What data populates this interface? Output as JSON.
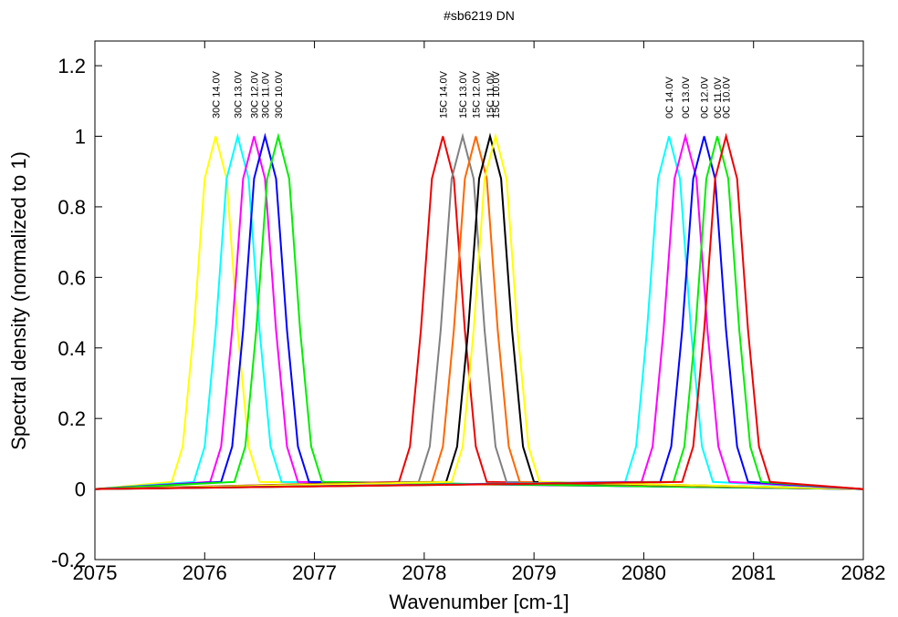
{
  "chart_data": {
    "type": "line",
    "title": "#sb6219 DN",
    "x_label": "Wavenumber [cm-1]",
    "y_label": "Spectral density (normalized to 1)",
    "xlim": [
      2075,
      2082
    ],
    "xticks": [
      2075,
      2076,
      2077,
      2078,
      2079,
      2080,
      2081,
      2082
    ],
    "ylim": [
      -0.2,
      1.27
    ],
    "yticks": [
      -0.2,
      0,
      0.2,
      0.4,
      0.6,
      0.8,
      1,
      1.2
    ],
    "grid": false,
    "series": [
      {
        "name": "30C 14.0V",
        "color": "#ffff00",
        "x": [
          2075,
          2075.7,
          2075.8,
          2075.9,
          2076.0,
          2076.1,
          2076.2,
          2076.3,
          2076.4,
          2076.5,
          2082
        ],
        "values": [
          0,
          0.02,
          0.12,
          0.45,
          0.88,
          1,
          0.88,
          0.45,
          0.12,
          0.02,
          0
        ]
      },
      {
        "name": "30C 13.0V",
        "color": "#00ffff",
        "x": [
          2075,
          2075.9,
          2076.0,
          2076.1,
          2076.2,
          2076.3,
          2076.4,
          2076.5,
          2076.6,
          2076.7,
          2082
        ],
        "values": [
          0,
          0.02,
          0.12,
          0.45,
          0.88,
          1,
          0.88,
          0.45,
          0.12,
          0.02,
          0
        ]
      },
      {
        "name": "30C 12.0V",
        "color": "#ff00ff",
        "x": [
          2075,
          2076.05,
          2076.15,
          2076.25,
          2076.35,
          2076.45,
          2076.55,
          2076.65,
          2076.75,
          2076.85,
          2082
        ],
        "values": [
          0,
          0.02,
          0.12,
          0.45,
          0.88,
          1,
          0.88,
          0.45,
          0.12,
          0.02,
          0
        ]
      },
      {
        "name": "30C 11.0V",
        "color": "#0000ff",
        "x": [
          2075,
          2076.15,
          2076.25,
          2076.35,
          2076.45,
          2076.55,
          2076.65,
          2076.75,
          2076.85,
          2076.95,
          2082
        ],
        "values": [
          0,
          0.02,
          0.12,
          0.45,
          0.88,
          1,
          0.88,
          0.45,
          0.12,
          0.02,
          0
        ]
      },
      {
        "name": "30C 10.0V",
        "color": "#00ee00",
        "x": [
          2075,
          2076.27,
          2076.37,
          2076.47,
          2076.57,
          2076.67,
          2076.77,
          2076.87,
          2076.97,
          2077.07,
          2082
        ],
        "values": [
          0,
          0.02,
          0.12,
          0.45,
          0.88,
          1,
          0.88,
          0.45,
          0.12,
          0.02,
          0
        ]
      },
      {
        "name": "15C 14.0V",
        "color": "#ee0000",
        "x": [
          2075,
          2077.77,
          2077.87,
          2077.97,
          2078.07,
          2078.17,
          2078.27,
          2078.37,
          2078.47,
          2078.57,
          2082
        ],
        "values": [
          0,
          0.02,
          0.12,
          0.45,
          0.88,
          1,
          0.88,
          0.45,
          0.12,
          0.02,
          0
        ]
      },
      {
        "name": "15C 13.0V",
        "color": "#808080",
        "x": [
          2075,
          2077.95,
          2078.05,
          2078.15,
          2078.25,
          2078.35,
          2078.45,
          2078.55,
          2078.65,
          2078.75,
          2082
        ],
        "values": [
          0,
          0.02,
          0.12,
          0.45,
          0.88,
          1,
          0.88,
          0.45,
          0.12,
          0.02,
          0
        ]
      },
      {
        "name": "15C 12.0V",
        "color": "#ff6600",
        "x": [
          2075,
          2078.07,
          2078.17,
          2078.27,
          2078.37,
          2078.47,
          2078.57,
          2078.67,
          2078.77,
          2078.87,
          2082
        ],
        "values": [
          0,
          0.02,
          0.12,
          0.45,
          0.88,
          1,
          0.88,
          0.45,
          0.12,
          0.02,
          0
        ]
      },
      {
        "name": "15C 11.0V",
        "color": "#000000",
        "x": [
          2075,
          2078.2,
          2078.3,
          2078.4,
          2078.5,
          2078.6,
          2078.7,
          2078.8,
          2078.9,
          2079.0,
          2082
        ],
        "values": [
          0,
          0.02,
          0.12,
          0.45,
          0.88,
          1,
          0.88,
          0.45,
          0.12,
          0.02,
          0
        ]
      },
      {
        "name": "15C 10.0V",
        "color": "#ffff00",
        "x": [
          2075,
          2078.25,
          2078.35,
          2078.45,
          2078.55,
          2078.65,
          2078.75,
          2078.85,
          2078.95,
          2079.05,
          2082
        ],
        "values": [
          0,
          0.02,
          0.12,
          0.45,
          0.88,
          1,
          0.88,
          0.45,
          0.12,
          0.02,
          0
        ]
      },
      {
        "name": "0C 14.0V",
        "color": "#00ffff",
        "x": [
          2075,
          2079.83,
          2079.93,
          2080.03,
          2080.13,
          2080.23,
          2080.33,
          2080.43,
          2080.53,
          2080.63,
          2082
        ],
        "values": [
          0,
          0.02,
          0.12,
          0.45,
          0.88,
          1,
          0.88,
          0.45,
          0.12,
          0.02,
          0
        ]
      },
      {
        "name": "0C 13.0V",
        "color": "#ff00ff",
        "x": [
          2075,
          2079.98,
          2080.08,
          2080.18,
          2080.28,
          2080.38,
          2080.48,
          2080.58,
          2080.68,
          2080.78,
          2082
        ],
        "values": [
          0,
          0.02,
          0.12,
          0.45,
          0.88,
          1,
          0.88,
          0.45,
          0.12,
          0.02,
          0
        ]
      },
      {
        "name": "0C 12.0V",
        "color": "#0000ff",
        "x": [
          2075,
          2080.15,
          2080.25,
          2080.35,
          2080.45,
          2080.55,
          2080.65,
          2080.75,
          2080.85,
          2080.95,
          2082
        ],
        "values": [
          0,
          0.02,
          0.12,
          0.45,
          0.88,
          1,
          0.88,
          0.45,
          0.12,
          0.02,
          0
        ]
      },
      {
        "name": "0C 11.0V",
        "color": "#00ee00",
        "x": [
          2075,
          2080.27,
          2080.37,
          2080.47,
          2080.57,
          2080.67,
          2080.77,
          2080.87,
          2080.97,
          2081.07,
          2082
        ],
        "values": [
          0,
          0.02,
          0.12,
          0.45,
          0.88,
          1,
          0.88,
          0.45,
          0.12,
          0.02,
          0
        ]
      },
      {
        "name": "0C 10.0V",
        "color": "#ee0000",
        "x": [
          2075,
          2080.35,
          2080.45,
          2080.55,
          2080.65,
          2080.75,
          2080.85,
          2080.95,
          2081.05,
          2081.15,
          2082
        ],
        "values": [
          0,
          0.02,
          0.12,
          0.45,
          0.88,
          1,
          0.88,
          0.45,
          0.12,
          0.02,
          0
        ]
      }
    ]
  }
}
